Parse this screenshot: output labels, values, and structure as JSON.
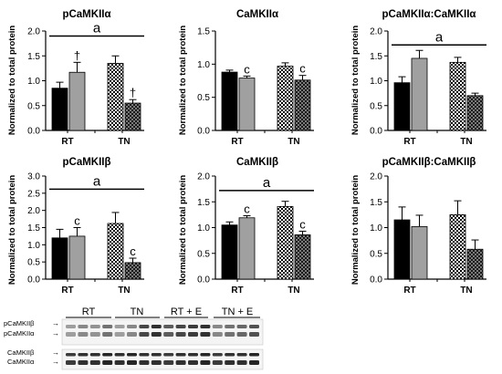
{
  "colors": {
    "black_bar": "#000000",
    "gray_bar": "#a0a0a0",
    "checker": "checkerboard-pattern",
    "axis": "#000000"
  },
  "chart_data": [
    {
      "type": "bar",
      "title": "pCaMKIIα",
      "ylabel": "Normalized to total protein",
      "ylim": [
        0,
        2.0
      ],
      "yticks": [
        "0.0",
        "0.5",
        "1.0",
        "1.5",
        "2.0"
      ],
      "groups": [
        "RT",
        "TN"
      ],
      "values": [
        0.85,
        1.17,
        1.35,
        0.55
      ],
      "errors": [
        0.12,
        0.2,
        0.15,
        0.07
      ],
      "fills": [
        "black",
        "gray",
        "checker_light",
        "checker_dark"
      ],
      "markers": [
        "",
        "†",
        "",
        "†"
      ],
      "bracket": "a",
      "bracket_y": 1.9
    },
    {
      "type": "bar",
      "title": "CaMKIIα",
      "ylabel": "Normalized to total protein",
      "ylim": [
        0,
        1.5
      ],
      "yticks": [
        "0.0",
        "0.5",
        "1.0",
        "1.5"
      ],
      "groups": [
        "RT",
        "TN"
      ],
      "values": [
        0.88,
        0.79,
        0.97,
        0.76
      ],
      "errors": [
        0.03,
        0.03,
        0.05,
        0.07
      ],
      "fills": [
        "black",
        "gray",
        "checker_light",
        "checker_dark"
      ],
      "markers": [
        "",
        "c",
        "",
        "c"
      ],
      "bracket": "",
      "bracket_y": null
    },
    {
      "type": "bar",
      "title": "pCaMKIIα:CaMKIIα",
      "ylabel": "Normalized to total protein",
      "ylim": [
        0,
        2.0
      ],
      "yticks": [
        "0.0",
        "0.5",
        "1.0",
        "1.5",
        "2.0"
      ],
      "groups": [
        "RT",
        "TN"
      ],
      "values": [
        0.96,
        1.45,
        1.37,
        0.7
      ],
      "errors": [
        0.12,
        0.16,
        0.1,
        0.05
      ],
      "fills": [
        "black",
        "gray",
        "checker_light",
        "checker_dark"
      ],
      "markers": [
        "",
        "",
        "",
        ""
      ],
      "bracket": "a",
      "bracket_y": 1.72
    },
    {
      "type": "bar",
      "title": "pCaMKIIβ",
      "ylabel": "Normalized to total protein",
      "ylim": [
        0,
        3.0
      ],
      "yticks": [
        "0.0",
        "0.5",
        "1.0",
        "1.5",
        "2.0",
        "2.5",
        "3.0"
      ],
      "groups": [
        "RT",
        "TN"
      ],
      "values": [
        1.2,
        1.25,
        1.62,
        0.48
      ],
      "errors": [
        0.25,
        0.25,
        0.32,
        0.13
      ],
      "fills": [
        "black",
        "gray",
        "checker_light",
        "checker_dark"
      ],
      "markers": [
        "",
        "c",
        "",
        "c"
      ],
      "bracket": "a",
      "bracket_y": 2.62
    },
    {
      "type": "bar",
      "title": "CaMKIIβ",
      "ylabel": "Normalized to total protein",
      "ylim": [
        0,
        2.0
      ],
      "yticks": [
        "0.0",
        "0.5",
        "1.0",
        "1.5",
        "2.0"
      ],
      "groups": [
        "RT",
        "TN"
      ],
      "values": [
        1.05,
        1.19,
        1.41,
        0.86
      ],
      "errors": [
        0.06,
        0.04,
        0.1,
        0.07
      ],
      "fills": [
        "black",
        "gray",
        "checker_light",
        "checker_dark"
      ],
      "markers": [
        "",
        "c",
        "",
        "c"
      ],
      "bracket": "a",
      "bracket_y": 1.72
    },
    {
      "type": "bar",
      "title": "pCaMKIIβ:CaMKIIβ",
      "ylabel": "Normalized to total protein",
      "ylim": [
        0,
        2.0
      ],
      "yticks": [
        "0.0",
        "0.5",
        "1.0",
        "1.5",
        "2.0"
      ],
      "groups": [
        "RT",
        "TN"
      ],
      "values": [
        1.15,
        1.02,
        1.25,
        0.58
      ],
      "errors": [
        0.25,
        0.22,
        0.27,
        0.18
      ],
      "fills": [
        "black",
        "gray",
        "checker_light",
        "checker_dark"
      ],
      "markers": [
        "",
        "",
        "",
        ""
      ],
      "bracket": "",
      "bracket_y": null
    }
  ],
  "blot": {
    "top_labels": [
      "RT",
      "TN",
      "RT + E",
      "TN + E"
    ],
    "band_labels_top": [
      "pCaMKIIβ",
      "pCaMKIIα"
    ],
    "band_labels_bottom": [
      "CaMKIIβ",
      "CaMKIIα"
    ],
    "arrow": "→",
    "top_band_intensity": [
      0.35,
      0.45,
      0.4,
      0.55,
      0.35,
      0.45,
      0.75,
      0.85,
      0.65,
      0.75,
      0.8,
      0.85,
      0.45,
      0.55,
      0.6,
      0.7
    ],
    "bottom_band_intensity": [
      0.8,
      0.85,
      0.85,
      0.9,
      0.85,
      0.9,
      0.85,
      0.85,
      0.8,
      0.85,
      0.85,
      0.9,
      0.8,
      0.85,
      0.85,
      0.9
    ]
  }
}
